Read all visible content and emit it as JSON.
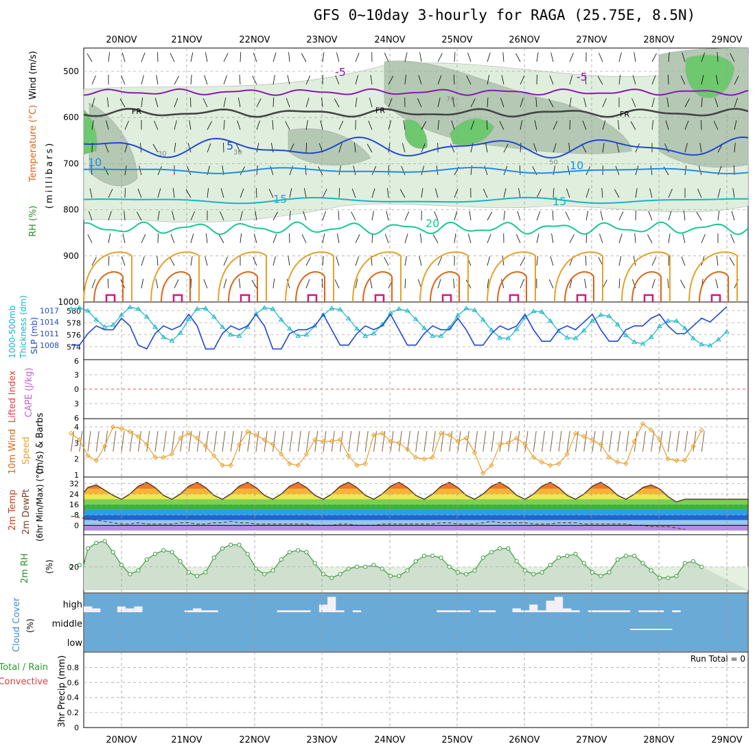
{
  "title": "GFS 0~10day 3-hourly for RAGA (25.75E, 8.5N)",
  "days": [
    "20NOV",
    "21NOV",
    "22NOV",
    "23NOV",
    "24NOV",
    "25NOV",
    "26NOV",
    "27NOV",
    "28NOV",
    "29NOV"
  ],
  "colors": {
    "purple": "#8a14b4",
    "black": "#000000",
    "blue": "#1e46d2",
    "lightblue": "#1e8ce6",
    "cyan": "#14b4c8",
    "teal": "#14c896",
    "orange": "#e6a028",
    "darkorange": "#dc6414",
    "magenta": "#dc1478",
    "rh_fill": "#dfeedd",
    "rh_dark": "#b4c8b4",
    "rh_green": "#6ec86e",
    "cloud": "#6aaad6",
    "rh2m_fill": "#e4f0e0"
  },
  "labels": {
    "p1_a": "Wind (m/s)",
    "p1_b": "Temperature (°C)",
    "p1_c": "RH (%)",
    "p1_d": "(millibars)",
    "p2_a": "1000-500mb",
    "p2_b": "Thickness (dm)",
    "p2_c": "SLP (mb)",
    "p3_a": "Lifted Index",
    "p3_b": "CAPE (J/kg)",
    "p4_a": "10m Wind",
    "p4_b": "Speed",
    "p4_c": "(m/s) & Barbs",
    "p5_a": "2m Temp",
    "p5_b": "2m DewPt",
    "p5_c": "(6hr Min/Max) (°C)",
    "p6_a": "2m RH",
    "p6_b": "(%)",
    "p7_a": "Cloud Cover",
    "p7_b": "(%)",
    "p8_a": "Total / Rain",
    "p8_b": "Convective",
    "p8_c": "3hr Precip (mm)",
    "run_total": "Run Total = 0",
    "fr": "FR",
    "cloud_levels": [
      "high",
      "middle",
      "low"
    ]
  },
  "chart_data": [
    {
      "type": "contour",
      "name": "upper_air",
      "yaxis": "pressure (mb)",
      "yticks": [
        500,
        600,
        700,
        800,
        900,
        1000
      ],
      "temp_contour_labels": [
        "-5",
        "5",
        "10",
        "15",
        "20",
        "FR"
      ],
      "rh_labels": [
        "30",
        "50",
        "70"
      ]
    },
    {
      "type": "line",
      "name": "thickness_slp",
      "left_ticks": [
        574,
        576,
        578,
        580
      ],
      "right_ticks": [
        1008,
        1011,
        1014,
        1017
      ],
      "slp": [
        1008,
        1008,
        1011,
        1013,
        1012,
        1012,
        1015,
        1013,
        1008,
        1007,
        1011,
        1013,
        1012,
        1013,
        1016,
        1013,
        1007,
        1007,
        1011,
        1013,
        1012,
        1013,
        1016,
        1013,
        1007,
        1007,
        1011,
        1012,
        1012,
        1013,
        1016,
        1012,
        1008,
        1008,
        1011,
        1013,
        1012,
        1013,
        1016,
        1012,
        1008,
        1008,
        1011,
        1013,
        1012,
        1012,
        1015,
        1012,
        1008,
        1008,
        1011,
        1013,
        1012,
        1013,
        1016,
        1012,
        1009,
        1009,
        1012,
        1013,
        1012,
        1014,
        1016,
        1012,
        1009,
        1009,
        1012,
        1013,
        1013,
        1015,
        1016,
        1013,
        1011,
        1011,
        1013,
        1015,
        1014,
        1016,
        1018
      ],
      "thickness": [
        580.3,
        580.5,
        580,
        578.5,
        577.3,
        577.6,
        579.3,
        580.6,
        580.3,
        579,
        577.3,
        575.6,
        575,
        576.3,
        578.6,
        580.3,
        580.4,
        579,
        577.3,
        576,
        575.8,
        577.3,
        579.5,
        580.5,
        580.3,
        578.5,
        577,
        575.8,
        576,
        577.5,
        579.3,
        580.4,
        580.2,
        578.7,
        577,
        575.8,
        576.2,
        577.7,
        579.6,
        580.3,
        580,
        578.6,
        577.1,
        575.8,
        575.8,
        577.2,
        579.2,
        580.4,
        580.1,
        578.5,
        576.8,
        575.5,
        575.4,
        576.9,
        578.9,
        579.9,
        579.8,
        578.3,
        576.6,
        575.5,
        575.4,
        576.7,
        578.3,
        579.3,
        579.1,
        577.7,
        575.9,
        574.8,
        574.5,
        575.6,
        577.4,
        578.3,
        578.3,
        577.1,
        575.4,
        574.4,
        574.2,
        575.2,
        576.5
      ]
    },
    {
      "type": "line",
      "name": "lifted_index_cape",
      "yticks": [
        "6",
        "3",
        "0",
        "3",
        "6"
      ]
    },
    {
      "type": "line",
      "name": "wind10m",
      "yticks": [
        1,
        2,
        3,
        4
      ],
      "speed": [
        3.6,
        3.2,
        2.2,
        1.9,
        2.8,
        4,
        3.9,
        3.7,
        3.4,
        2.9,
        2.1,
        2.1,
        2.3,
        3.3,
        3.6,
        3.3,
        2.8,
        2.2,
        1.6,
        1.6,
        2.9,
        3.7,
        3.5,
        3.2,
        2.9,
        2.3,
        1.7,
        1.6,
        2.3,
        3.2,
        3.1,
        3.1,
        3.2,
        2.2,
        1.6,
        1.7,
        3.5,
        3.6,
        3.1,
        3.0,
        2.6,
        2.1,
        2.0,
        2.1,
        3.6,
        3.5,
        3.1,
        3.3,
        2.4,
        1.1,
        1.6,
        2.9,
        3.0,
        3.3,
        2.9,
        2.1,
        1.8,
        1.6,
        1.7,
        2.3,
        3.6,
        3.4,
        3.2,
        2.9,
        2.1,
        1.8,
        1.7,
        3.1,
        4.2,
        3.8,
        3.2,
        2.0,
        1.9,
        1.9,
        2.8,
        3.8
      ]
    },
    {
      "type": "area",
      "name": "temp2m",
      "yticks": [
        0,
        8,
        16,
        24,
        32
      ],
      "temp": [
        21,
        25,
        29,
        31,
        27,
        23,
        20,
        24,
        30,
        33,
        29,
        23,
        20,
        24,
        30,
        33,
        29,
        23,
        20,
        24,
        30,
        33,
        29,
        23,
        20,
        24,
        30,
        33,
        29,
        23,
        20,
        24,
        30,
        33,
        29,
        23,
        20,
        24,
        30,
        33,
        29,
        23,
        20,
        24,
        30,
        33,
        29,
        23,
        20,
        24,
        30,
        33,
        29,
        23,
        20,
        24,
        30,
        33,
        29,
        23,
        20,
        24,
        30,
        33,
        29,
        23,
        20,
        24,
        29,
        31,
        28,
        22,
        18,
        20
      ],
      "dewpt": [
        7,
        6,
        5,
        4,
        3,
        2,
        1,
        1,
        2,
        1,
        1,
        1,
        1,
        2,
        2,
        1,
        1,
        2,
        2,
        3,
        2,
        2,
        1,
        1,
        1,
        1,
        1,
        1,
        1,
        0,
        0,
        0,
        1,
        1,
        0,
        0,
        0,
        1,
        1,
        1,
        1,
        1,
        1,
        1,
        2,
        2,
        1,
        1,
        1,
        2,
        3,
        2,
        2,
        2,
        2,
        1,
        1,
        1,
        2,
        2,
        2,
        1,
        1,
        1,
        1,
        1,
        1,
        0,
        0,
        -1,
        -1,
        -1,
        -2,
        -3
      ]
    },
    {
      "type": "line",
      "name": "rh2m",
      "yticks": [
        20
      ],
      "rh": [
        20,
        21,
        30,
        33,
        34,
        28,
        21,
        16,
        18,
        24,
        27,
        29,
        28,
        23,
        17,
        15,
        17,
        25,
        30,
        32,
        32,
        27,
        19,
        16,
        18,
        24,
        28,
        29,
        28,
        22,
        16,
        14,
        16,
        19,
        20,
        20,
        21,
        19,
        15,
        15,
        18,
        23,
        26,
        26,
        25,
        20,
        17,
        16,
        18,
        25,
        28,
        30,
        30,
        23,
        18,
        16,
        17,
        21,
        25,
        26,
        27,
        22,
        17,
        15,
        17,
        24,
        26,
        26,
        22,
        18,
        14,
        14,
        15,
        22,
        23,
        20
      ]
    },
    {
      "type": "bar",
      "name": "cloud_cover",
      "high": [
        0,
        0.3,
        0.3,
        0.2,
        0,
        0,
        0.3,
        0.2,
        0.3,
        0,
        0,
        0,
        0,
        0,
        0.1,
        0.2,
        0.1,
        0.1,
        0,
        0,
        0,
        0,
        0,
        0,
        0,
        0.1,
        0.1,
        0.1,
        0.1,
        0,
        0.4,
        0.8,
        0.1,
        0,
        0.1,
        0,
        0,
        0,
        0,
        0,
        0,
        0,
        0,
        0,
        0.1,
        0.1,
        0.1,
        0.1,
        0,
        0.1,
        0.1,
        0,
        0,
        0.2,
        0.1,
        0.4,
        0.1,
        0.6,
        0.8,
        0.2,
        0.1,
        0,
        0.1,
        0.1,
        0.1,
        0.1,
        0.1,
        0,
        0.1,
        0.1,
        0.1,
        0,
        0.1,
        0,
        0,
        0
      ],
      "middle": [
        0,
        0,
        0,
        0,
        0,
        0,
        0,
        0,
        0,
        0,
        0,
        0,
        0,
        0,
        0,
        0,
        0,
        0,
        0,
        0,
        0,
        0,
        0,
        0,
        0,
        0,
        0,
        0,
        0,
        0,
        0,
        0,
        0,
        0,
        0,
        0,
        0,
        0,
        0,
        0,
        0,
        0,
        0,
        0,
        0,
        0,
        0,
        0,
        0,
        0,
        0,
        0,
        0,
        0,
        0,
        0,
        0,
        0,
        0,
        0,
        0,
        0,
        0,
        0,
        0,
        0,
        0,
        0.05,
        0.05,
        0.05,
        0.05,
        0.05,
        0,
        0,
        0,
        0
      ]
    },
    {
      "type": "bar",
      "name": "precip3h",
      "yticks": [
        0,
        0.2,
        0.4,
        0.6,
        0.8
      ],
      "values": []
    }
  ]
}
